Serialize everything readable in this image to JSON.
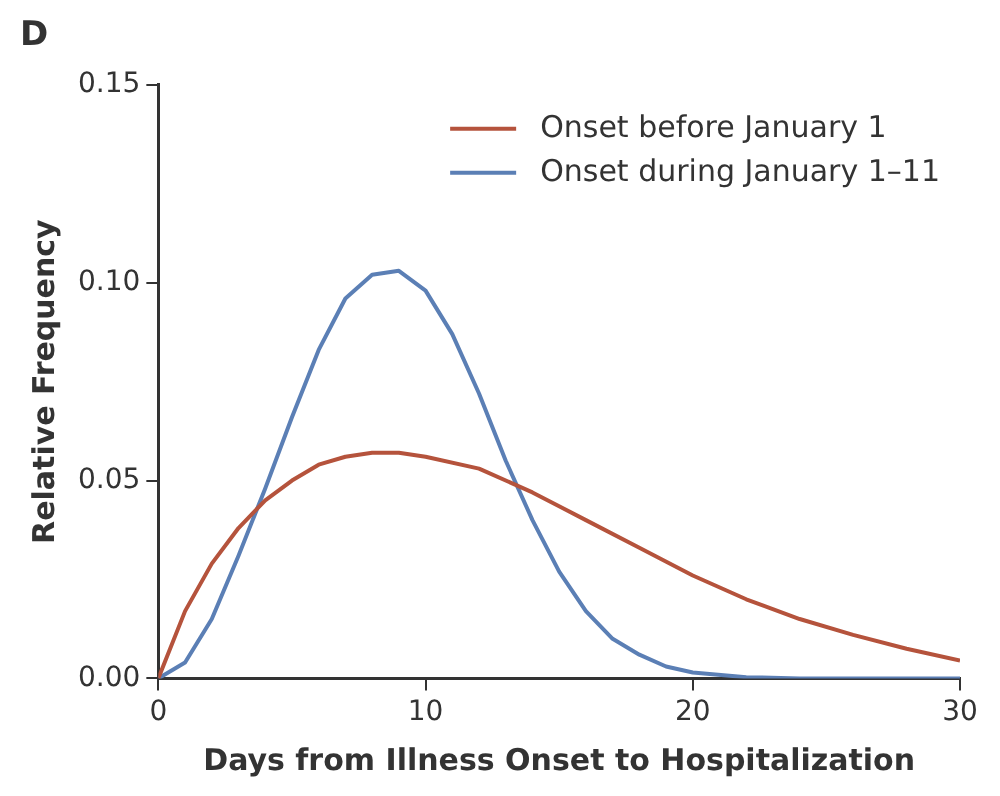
{
  "chart_data": {
    "type": "line",
    "title": "D",
    "xlabel": "Days from Illness Onset to Hospitalization",
    "ylabel": "Relative Frequency",
    "xlim": [
      0,
      30
    ],
    "xticks": [
      0,
      10,
      20,
      30
    ],
    "ylim": [
      0,
      0.15
    ],
    "yticks": [
      {
        "value": 0,
        "label": "0.00"
      },
      {
        "value": 0.05,
        "label": "0.05"
      },
      {
        "value": 0.1,
        "label": "0.10"
      },
      {
        "value": 0.15,
        "label": "0.15"
      }
    ],
    "grid": false,
    "legend": "top right",
    "marker": "none",
    "line_style": "solid",
    "series": [
      {
        "name": "Onset before January 1",
        "color": "#b5533c",
        "x": [
          0,
          1,
          2,
          3,
          4,
          5,
          6,
          7,
          8,
          9,
          10,
          12,
          14,
          16,
          18,
          20,
          22,
          24,
          26,
          28,
          30
        ],
        "values": [
          0,
          0.017,
          0.029,
          0.038,
          0.045,
          0.05,
          0.054,
          0.056,
          0.057,
          0.057,
          0.056,
          0.053,
          0.047,
          0.04,
          0.033,
          0.026,
          0.02,
          0.015,
          0.011,
          0.0075,
          0.0045
        ]
      },
      {
        "name": "Onset during January 1–11",
        "color": "#5b7fb5",
        "x": [
          0,
          1,
          2,
          3,
          4,
          5,
          6,
          7,
          8,
          9,
          10,
          11,
          12,
          13,
          14,
          15,
          16,
          17,
          18,
          19,
          20,
          22,
          24,
          30
        ],
        "values": [
          0,
          0.004,
          0.015,
          0.031,
          0.048,
          0.066,
          0.083,
          0.096,
          0.102,
          0.103,
          0.098,
          0.087,
          0.072,
          0.055,
          0.04,
          0.027,
          0.017,
          0.01,
          0.006,
          0.003,
          0.0015,
          0.0003,
          0,
          0
        ]
      }
    ]
  }
}
